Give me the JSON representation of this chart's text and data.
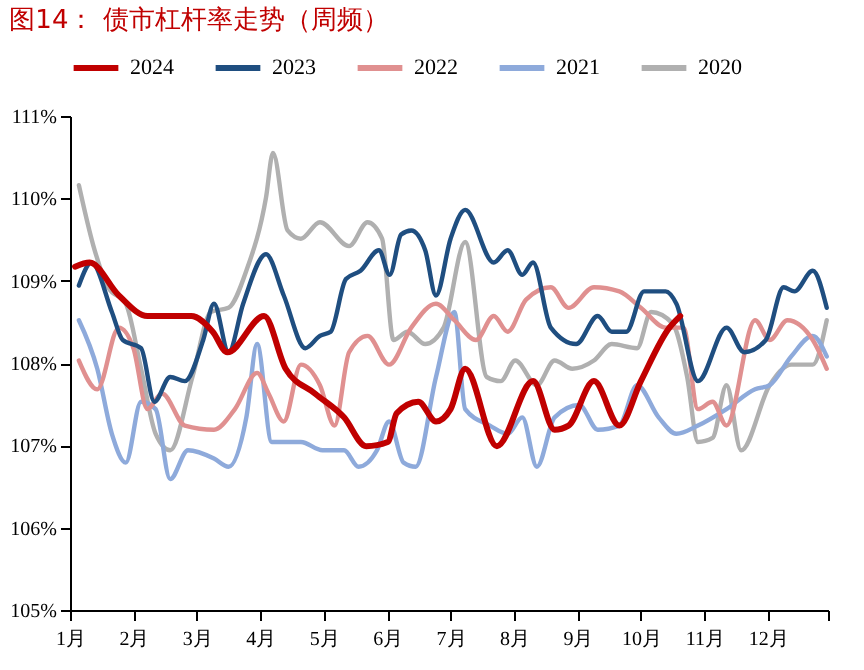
{
  "chart_data": {
    "type": "line",
    "title": "图14：  债市杠杆率走势（周频）",
    "xlim": [
      1,
      12.95
    ],
    "xticks": [
      {
        "value": 1,
        "label": "1月"
      },
      {
        "value": 2,
        "label": "2月"
      },
      {
        "value": 3,
        "label": "3月"
      },
      {
        "value": 4,
        "label": "4月"
      },
      {
        "value": 5,
        "label": "5月"
      },
      {
        "value": 6,
        "label": "6月"
      },
      {
        "value": 7,
        "label": "7月"
      },
      {
        "value": 8,
        "label": "8月"
      },
      {
        "value": 9,
        "label": "9月"
      },
      {
        "value": 10,
        "label": "10月"
      },
      {
        "value": 11,
        "label": "11月"
      },
      {
        "value": 12,
        "label": "12月"
      },
      {
        "value": 12.95,
        "label": null
      }
    ],
    "ylim": [
      105,
      111
    ],
    "yticks": [
      {
        "value": 105,
        "label": "105%"
      },
      {
        "value": 106,
        "label": "106%"
      },
      {
        "value": 107,
        "label": "107%"
      },
      {
        "value": 108,
        "label": "108%"
      },
      {
        "value": 109,
        "label": "109%"
      },
      {
        "value": 110,
        "label": "110%"
      },
      {
        "value": 111,
        "label": "111%"
      }
    ],
    "grid": false,
    "legend": "top",
    "marker": "none",
    "line_style": "solid",
    "series": [
      {
        "name": "2024",
        "color": "#c00000",
        "x": [
          1.08,
          1.31,
          1.77,
          2.22,
          2.91,
          3.25,
          3.48,
          4.06,
          4.4,
          4.86,
          5.32,
          5.67,
          6.01,
          6.15,
          6.49,
          6.77,
          7.0,
          7.23,
          7.73,
          8.3,
          8.64,
          8.86,
          9.26,
          9.66,
          10.0,
          10.45,
          10.62
        ],
        "values": [
          109.17,
          109.22,
          108.82,
          108.57,
          108.57,
          108.38,
          108.13,
          108.57,
          107.93,
          107.63,
          107.34,
          106.99,
          107.04,
          107.39,
          107.53,
          107.29,
          107.44,
          107.93,
          106.99,
          107.78,
          107.19,
          107.24,
          107.78,
          107.24,
          107.78,
          108.43,
          108.57
        ]
      },
      {
        "name": "2023",
        "color": "#1f4e80",
        "x": [
          1.14,
          1.34,
          1.66,
          1.83,
          2.12,
          2.33,
          2.58,
          2.81,
          3.1,
          3.27,
          3.5,
          3.73,
          4.09,
          4.37,
          4.71,
          4.94,
          5.11,
          5.35,
          5.58,
          5.87,
          6.04,
          6.22,
          6.38,
          6.6,
          6.77,
          7.0,
          7.23,
          7.68,
          7.9,
          8.13,
          8.3,
          8.58,
          8.98,
          9.32,
          9.54,
          9.77,
          10.05,
          10.39,
          10.56,
          10.9,
          11.35,
          11.63,
          11.97,
          12.25,
          12.42,
          12.71,
          12.93
        ],
        "values": [
          108.94,
          109.22,
          108.62,
          108.28,
          108.18,
          107.53,
          107.83,
          107.78,
          108.28,
          108.72,
          108.13,
          108.72,
          109.32,
          108.82,
          108.18,
          108.33,
          108.38,
          109.02,
          109.12,
          109.37,
          109.07,
          109.56,
          109.61,
          109.37,
          108.82,
          109.51,
          109.86,
          109.22,
          109.37,
          109.07,
          109.22,
          108.43,
          108.23,
          108.57,
          108.38,
          108.38,
          108.87,
          108.87,
          108.72,
          107.78,
          108.43,
          108.13,
          108.28,
          108.92,
          108.87,
          109.12,
          108.67
        ]
      },
      {
        "name": "2022",
        "color": "#e09090",
        "x": [
          1.14,
          1.43,
          1.77,
          2.0,
          2.22,
          2.45,
          2.81,
          3.27,
          3.6,
          3.95,
          4.13,
          4.37,
          4.64,
          4.94,
          5.17,
          5.4,
          5.69,
          6.03,
          6.38,
          6.77,
          7.06,
          7.4,
          7.68,
          7.9,
          8.19,
          8.58,
          8.86,
          9.26,
          9.66,
          10.0,
          10.39,
          10.67,
          10.9,
          11.13,
          11.35,
          11.8,
          12.03,
          12.31,
          12.71,
          12.93
        ],
        "values": [
          108.03,
          107.68,
          108.43,
          108.18,
          107.44,
          107.63,
          107.24,
          107.19,
          107.44,
          107.88,
          107.63,
          107.29,
          107.98,
          107.73,
          107.24,
          108.13,
          108.33,
          107.98,
          108.43,
          108.72,
          108.52,
          108.28,
          108.57,
          108.38,
          108.77,
          108.92,
          108.67,
          108.92,
          108.87,
          108.67,
          108.43,
          108.43,
          107.44,
          107.53,
          107.24,
          108.52,
          108.28,
          108.52,
          108.28,
          107.93
        ]
      },
      {
        "name": "2021",
        "color": "#8eaadb",
        "x": [
          1.14,
          1.43,
          1.66,
          1.88,
          2.12,
          2.35,
          2.58,
          2.86,
          3.27,
          3.5,
          3.78,
          3.95,
          4.18,
          4.64,
          4.98,
          5.32,
          5.55,
          5.84,
          6.03,
          6.26,
          6.45,
          6.77,
          7.06,
          7.23,
          7.62,
          7.9,
          8.13,
          8.36,
          8.64,
          9.03,
          9.32,
          9.66,
          9.94,
          10.28,
          10.56,
          10.9,
          11.35,
          11.8,
          12.03,
          12.37,
          12.71,
          12.93
        ],
        "values": [
          108.52,
          107.93,
          107.14,
          106.79,
          107.53,
          107.44,
          106.59,
          106.94,
          106.84,
          106.74,
          107.34,
          108.23,
          107.04,
          107.04,
          106.94,
          106.94,
          106.74,
          106.94,
          107.29,
          106.79,
          106.74,
          107.83,
          108.62,
          107.44,
          107.24,
          107.14,
          107.34,
          106.74,
          107.34,
          107.49,
          107.19,
          107.24,
          107.73,
          107.34,
          107.14,
          107.24,
          107.44,
          107.68,
          107.73,
          108.08,
          108.33,
          108.08
        ]
      },
      {
        "name": "2020",
        "color": "#b0b0b0",
        "x": [
          1.14,
          1.37,
          1.6,
          1.88,
          2.12,
          2.35,
          2.58,
          2.93,
          3.22,
          3.5,
          3.78,
          4.09,
          4.2,
          4.43,
          4.64,
          4.94,
          5.4,
          5.69,
          5.92,
          6.1,
          6.32,
          6.6,
          6.89,
          7.23,
          7.57,
          7.79,
          8.02,
          8.36,
          8.64,
          8.92,
          9.26,
          9.54,
          9.94,
          10.16,
          10.5,
          10.73,
          10.9,
          11.13,
          11.35,
          11.58,
          12.03,
          12.37,
          12.71,
          12.93
        ],
        "values": [
          110.16,
          109.42,
          108.92,
          108.72,
          107.93,
          107.14,
          106.94,
          107.83,
          108.62,
          108.67,
          109.12,
          110.01,
          110.55,
          109.61,
          109.51,
          109.71,
          109.42,
          109.71,
          109.51,
          108.28,
          108.38,
          108.23,
          108.43,
          109.47,
          107.83,
          107.78,
          108.03,
          107.73,
          108.03,
          107.93,
          108.03,
          108.23,
          108.18,
          108.62,
          108.48,
          107.83,
          107.04,
          107.09,
          107.73,
          106.94,
          107.73,
          107.98,
          107.98,
          108.52
        ]
      }
    ]
  }
}
